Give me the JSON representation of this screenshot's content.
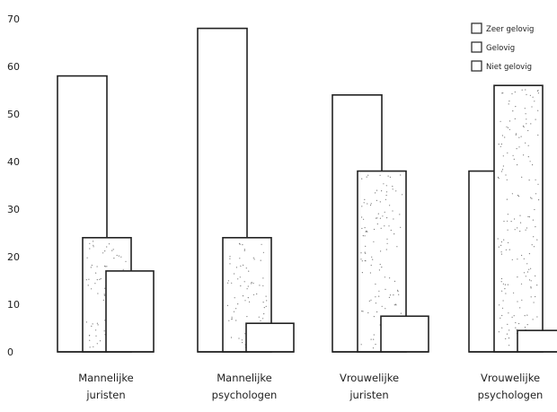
{
  "chart_data": {
    "type": "bar",
    "title": "",
    "xlabel": "",
    "ylabel": "",
    "ylim": [
      0,
      70
    ],
    "yticks": [
      0,
      10,
      20,
      30,
      40,
      50,
      60,
      70
    ],
    "grid": false,
    "legend_position": "top-right",
    "categories": [
      [
        "Mannelijke",
        "juristen"
      ],
      [
        "Mannelijke",
        "psychologen"
      ],
      [
        "Vrouwelijke",
        "juristen"
      ],
      [
        "Vrouwelijke",
        "psychologen"
      ]
    ],
    "series": [
      {
        "name": "Zeer gelovig",
        "values": [
          58,
          68,
          54,
          38
        ],
        "fill": "plain"
      },
      {
        "name": "Gelovig",
        "values": [
          24,
          24,
          38,
          56
        ],
        "fill": "dotted"
      },
      {
        "name": "Niet gelovig",
        "values": [
          17,
          6,
          7.5,
          4.5
        ],
        "fill": "plain"
      }
    ],
    "colors": {
      "stroke": "#222222",
      "fill": "#ffffff",
      "dots": "#777777"
    }
  }
}
